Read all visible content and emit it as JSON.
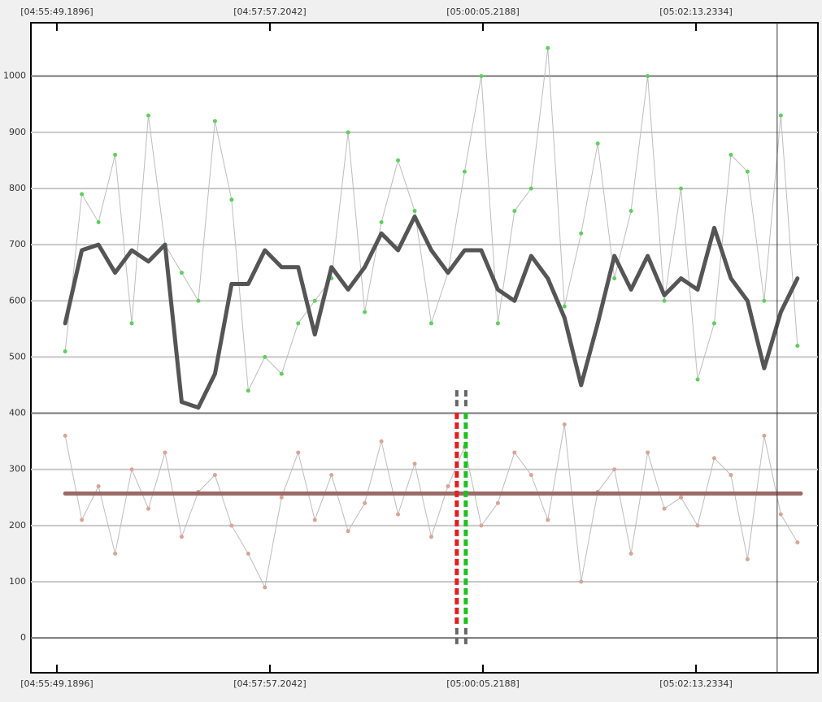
{
  "chart_data": {
    "type": "line",
    "x": [
      5,
      15,
      25,
      35,
      45,
      55,
      65,
      75,
      85,
      95,
      105,
      115,
      125,
      135,
      145,
      155,
      165,
      175,
      185,
      195,
      205,
      215,
      225,
      235,
      245,
      255,
      265,
      275,
      285,
      295,
      305,
      315,
      325,
      335,
      345,
      355,
      365,
      375,
      385,
      395,
      405,
      415,
      425,
      435,
      445
    ],
    "series": [
      {
        "style": "points",
        "color": "#5fcf5f",
        "values": [
          510,
          790,
          740,
          860,
          560,
          930,
          700,
          650,
          600,
          920,
          780,
          440,
          500,
          470,
          560,
          600,
          640,
          900,
          580,
          740,
          850,
          760,
          560,
          650,
          830,
          1000,
          560,
          760,
          800,
          1050,
          590,
          720,
          880,
          640,
          760,
          1000,
          600,
          800,
          460,
          560,
          860,
          830,
          600,
          930,
          520
        ]
      },
      {
        "style": "points",
        "color": "#d8a595",
        "values": [
          360,
          210,
          270,
          150,
          300,
          230,
          330,
          180,
          260,
          290,
          200,
          150,
          90,
          250,
          330,
          210,
          290,
          190,
          240,
          350,
          220,
          310,
          180,
          270,
          340,
          200,
          240,
          330,
          290,
          210,
          380,
          100,
          260,
          300,
          150,
          330,
          230,
          250,
          200,
          320,
          290,
          140,
          360,
          220,
          170
        ]
      },
      {
        "style": "line",
        "color": "#555555",
        "values": [
          560,
          690,
          700,
          650,
          690,
          670,
          700,
          420,
          410,
          470,
          630,
          630,
          690,
          660,
          660,
          540,
          660,
          620,
          660,
          720,
          690,
          750,
          690,
          650,
          690,
          690,
          620,
          600,
          680,
          640,
          570,
          450,
          560,
          680,
          620,
          680,
          610,
          640,
          620,
          730,
          640,
          600,
          480,
          580,
          640
        ]
      },
      {
        "style": "line",
        "color": "#9a6a66",
        "x": [
          5,
          447
        ],
        "values": [
          257,
          257
        ]
      }
    ],
    "markers": [
      {
        "x": 240.3,
        "from": 25,
        "to": 405,
        "color": "#e02020"
      },
      {
        "x": 245.7,
        "from": 25,
        "to": 405,
        "color": "#20c020"
      }
    ],
    "cursor_x": 432.8,
    "xlim": [
      -15.6,
      457.3
    ],
    "ylim": [
      -62,
      1095
    ],
    "xticks": [
      {
        "value": 0,
        "label": "[04:55:49.1896]"
      },
      {
        "value": 128.0146,
        "label": "[04:57:57.2042]"
      },
      {
        "value": 256.0292,
        "label": "[05:00:05.2188]"
      },
      {
        "value": 384.0438,
        "label": "[05:02:13.2334]"
      }
    ],
    "yticks": [
      0,
      100,
      200,
      300,
      400,
      500,
      600,
      700,
      800,
      900,
      1000
    ],
    "grid": true
  }
}
